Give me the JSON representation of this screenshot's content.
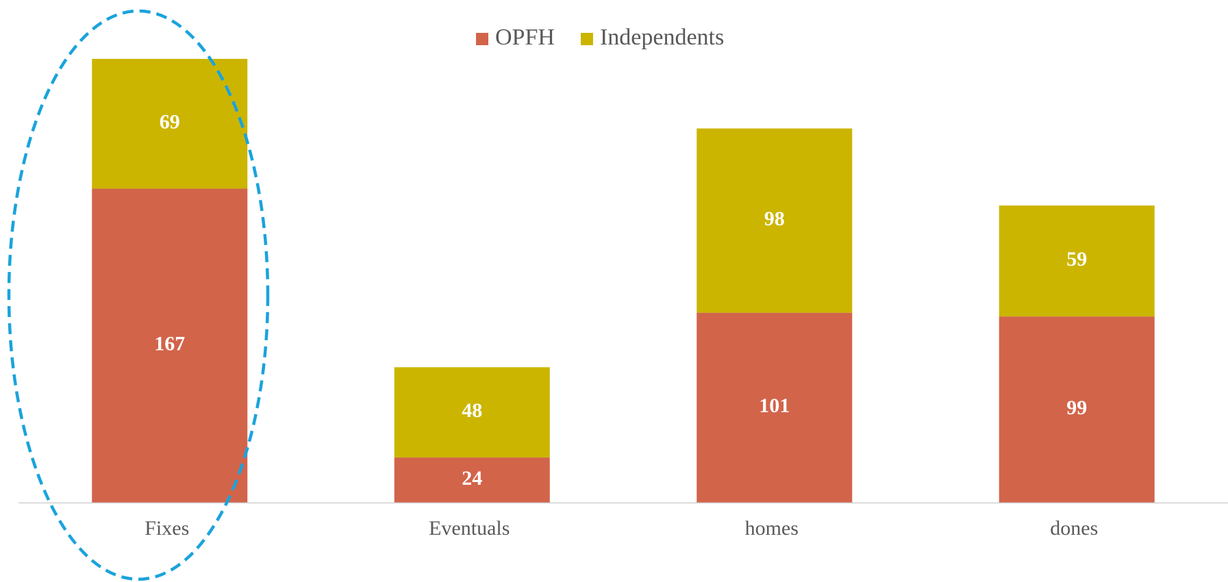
{
  "chart_data": {
    "type": "stacked_bar",
    "categories": [
      "Fixes",
      "Eventuals",
      "homes",
      "dones"
    ],
    "series": [
      {
        "name": "OPFH",
        "color": "#d2644a",
        "values": [
          167,
          24,
          101,
          99
        ]
      },
      {
        "name": "Independents",
        "color": "#cbb500",
        "values": [
          69,
          48,
          98,
          59
        ]
      }
    ],
    "legend": "top"
  }
}
